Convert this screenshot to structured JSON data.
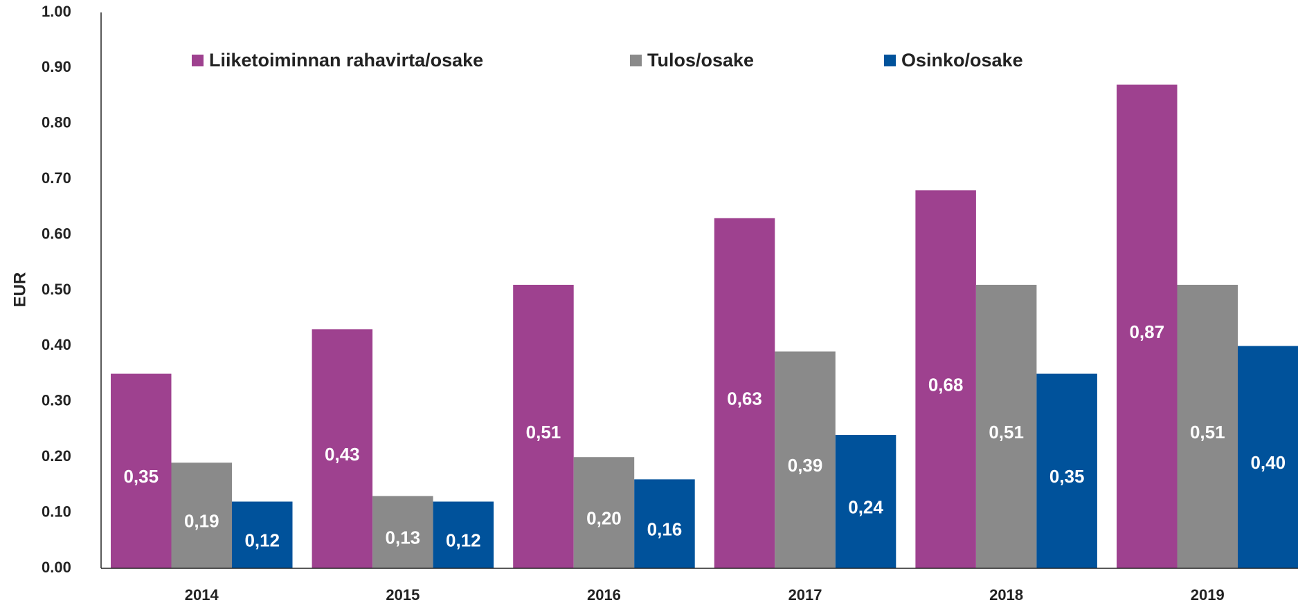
{
  "chart_data": {
    "type": "bar",
    "y_label": "EUR",
    "categories": [
      "2014",
      "2015",
      "2016",
      "2017",
      "2018",
      "2019"
    ],
    "series": [
      {
        "name": "Liiketoiminnan rahavirta/osake",
        "color": "#9e418f",
        "values": [
          0.35,
          0.43,
          0.51,
          0.63,
          0.68,
          0.87
        ],
        "value_labels": [
          "0,35",
          "0,43",
          "0,51",
          "0,63",
          "0,68",
          "0,87"
        ]
      },
      {
        "name": "Tulos/osake",
        "color": "#8a8a8a",
        "values": [
          0.19,
          0.13,
          0.2,
          0.39,
          0.51,
          0.51
        ],
        "value_labels": [
          "0,19",
          "0,13",
          "0,20",
          "0,39",
          "0,51",
          "0,51"
        ]
      },
      {
        "name": "Osinko/osake",
        "color": "#00529b",
        "values": [
          0.12,
          0.12,
          0.16,
          0.24,
          0.35,
          0.4
        ],
        "value_labels": [
          "0,12",
          "0,12",
          "0,16",
          "0,24",
          "0,35",
          "0,40"
        ]
      }
    ],
    "ylim": [
      0,
      1
    ],
    "yticks": [
      {
        "value": 0,
        "label": "0.00"
      },
      {
        "value": 0.1,
        "label": "0.10"
      },
      {
        "value": 0.2,
        "label": "0.20"
      },
      {
        "value": 0.3,
        "label": "0.30"
      },
      {
        "value": 0.4,
        "label": "0.40"
      },
      {
        "value": 0.5,
        "label": "0.50"
      },
      {
        "value": 0.6,
        "label": "0.60"
      },
      {
        "value": 0.7,
        "label": "0.70"
      },
      {
        "value": 0.8,
        "label": "0.80"
      },
      {
        "value": 0.9,
        "label": "0.90"
      },
      {
        "value": 1,
        "label": "1.00"
      }
    ],
    "grid": false,
    "legend": "top"
  }
}
